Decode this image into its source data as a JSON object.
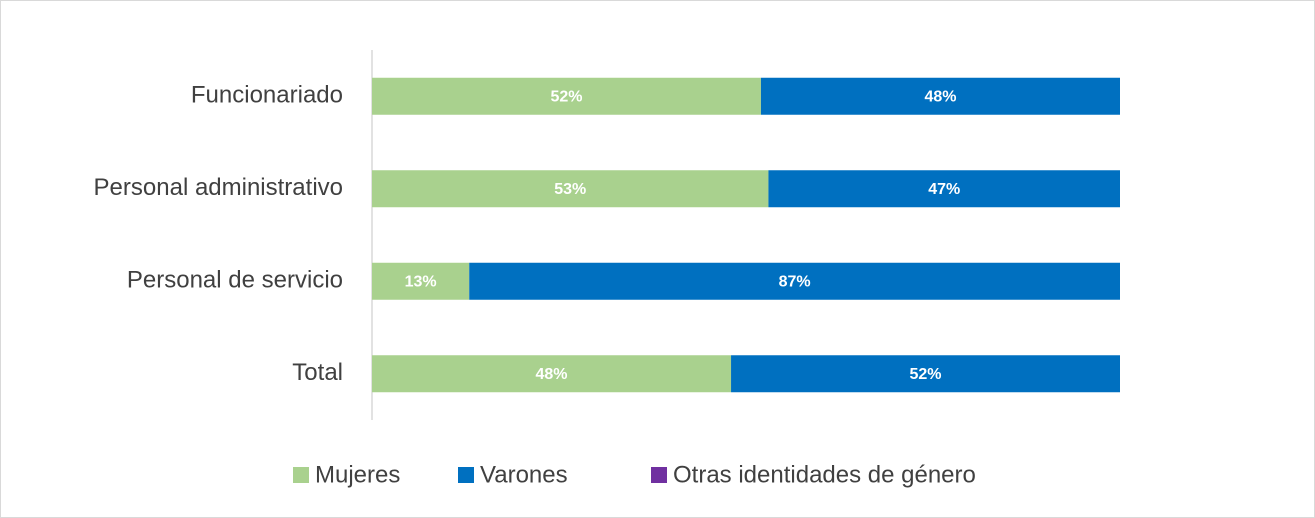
{
  "chart_data": {
    "type": "stacked-bar-horizontal",
    "categories": [
      "Funcionariado",
      "Personal administrativo",
      "Personal de servicio",
      "Total"
    ],
    "series": [
      {
        "name": "Mujeres",
        "color": "#a9d18e",
        "values": [
          52,
          53,
          13,
          48
        ],
        "value_labels": [
          "52%",
          "53%",
          "13%",
          "48%"
        ]
      },
      {
        "name": "Varones",
        "color": "#0070c0",
        "values": [
          48,
          47,
          87,
          52
        ],
        "value_labels": [
          "48%",
          "47%",
          "87%",
          "52%"
        ]
      },
      {
        "name": "Otras identidades de género",
        "color": "#7030a0",
        "values": [
          0,
          0,
          0,
          0
        ]
      }
    ],
    "xlim": [
      0,
      100
    ],
    "legend": "bottom"
  }
}
